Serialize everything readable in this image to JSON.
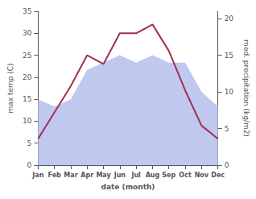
{
  "chart_data": {
    "type": "line",
    "categories": [
      "Jan",
      "Feb",
      "Mar",
      "Apr",
      "May",
      "Jun",
      "Jul",
      "Aug",
      "Sep",
      "Oct",
      "Nov",
      "Dec"
    ],
    "xlabel": "date (month)",
    "ylabel": "max temp (C)",
    "y2label": "med. precipitation (kg/m2)",
    "series": [
      {
        "type": "area",
        "axis": "y2",
        "color": "#c0c8f0",
        "values": [
          9,
          8,
          9,
          13,
          14,
          15,
          14,
          15,
          14,
          14,
          10,
          8
        ]
      },
      {
        "type": "line",
        "color": "#a03050",
        "values": [
          6,
          12,
          18,
          25,
          23,
          30,
          30,
          32,
          26,
          17,
          9,
          6
        ]
      }
    ],
    "ylim": [
      0,
      35
    ],
    "yticks": [
      0,
      5,
      10,
      15,
      20,
      25,
      30,
      35
    ],
    "y2lim": [
      0,
      21
    ],
    "y2ticks": [
      0,
      5,
      10,
      15,
      20
    ],
    "grid": false
  }
}
